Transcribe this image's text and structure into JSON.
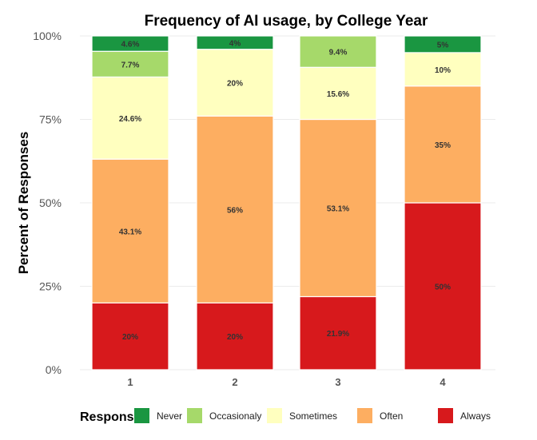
{
  "chart_data": {
    "type": "bar",
    "stacked": true,
    "title": "Frequency of AI usage, by College Year",
    "xlabel": "",
    "ylabel": "Percent of Responses",
    "ylim": [
      0,
      100
    ],
    "yticks": [
      "0%",
      "25%",
      "50%",
      "75%",
      "100%"
    ],
    "ytick_values": [
      0,
      25,
      50,
      75,
      100
    ],
    "grid": true,
    "categories": [
      "1",
      "2",
      "3",
      "4"
    ],
    "series": [
      {
        "name": "Always",
        "color": "#d7191c",
        "values": [
          20,
          20,
          21.9,
          50
        ],
        "labels": [
          "20%",
          "20%",
          "21.9%",
          "50%"
        ]
      },
      {
        "name": "Often",
        "color": "#fdae61",
        "values": [
          43.1,
          56,
          53.1,
          35
        ],
        "labels": [
          "43.1%",
          "56%",
          "53.1%",
          "35%"
        ]
      },
      {
        "name": "Sometimes",
        "color": "#ffffbf",
        "values": [
          24.6,
          20,
          15.6,
          10
        ],
        "labels": [
          "24.6%",
          "20%",
          "15.6%",
          "10%"
        ]
      },
      {
        "name": "Occasionaly",
        "color": "#a6d96a",
        "values": [
          7.7,
          0,
          9.4,
          0
        ],
        "labels": [
          "7.7%",
          "",
          "9.4%",
          ""
        ]
      },
      {
        "name": "Never",
        "color": "#1a9641",
        "values": [
          4.6,
          4,
          0,
          5
        ],
        "labels": [
          "4.6%",
          "4%",
          "",
          "5%"
        ]
      }
    ],
    "legend": {
      "title": "Response",
      "placement": "bottom",
      "order": [
        "Never",
        "Occasionaly",
        "Sometimes",
        "Often",
        "Always"
      ]
    }
  }
}
